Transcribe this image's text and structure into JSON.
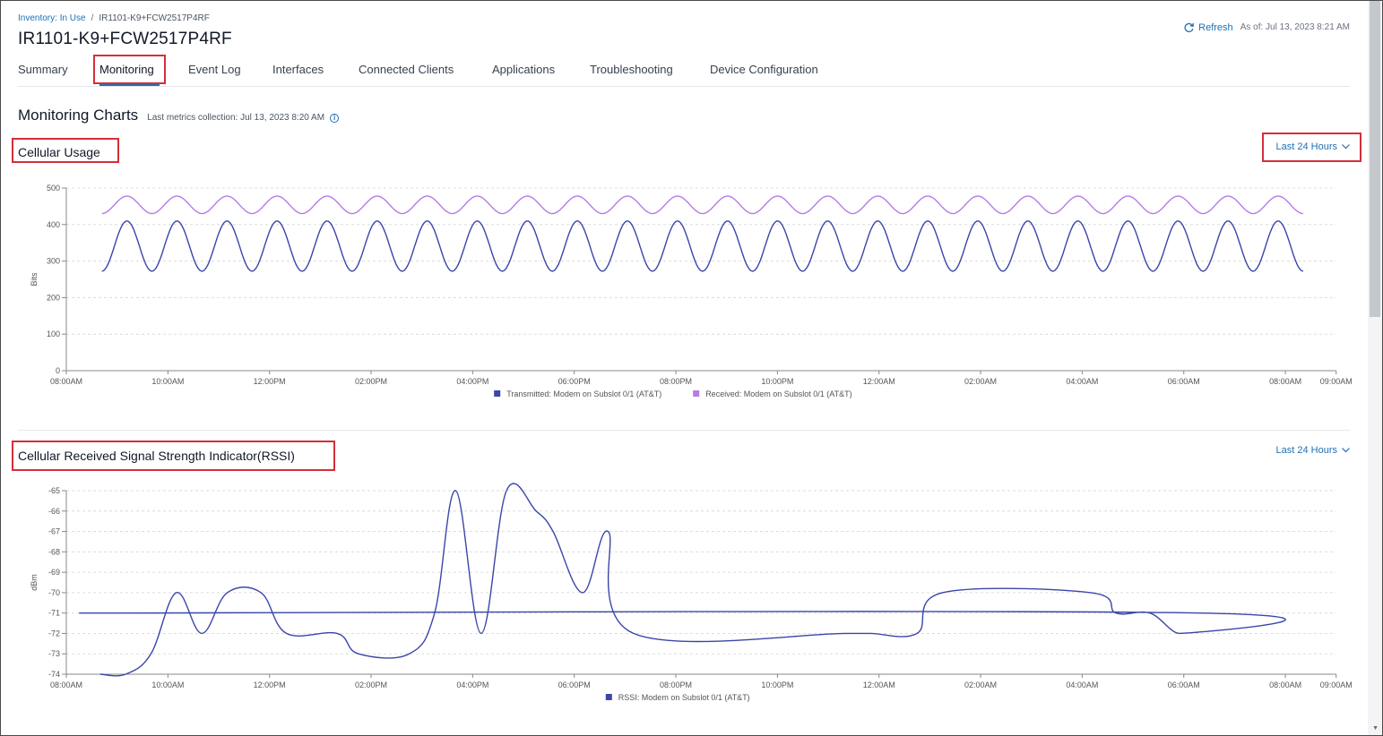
{
  "breadcrumb": {
    "parent": "Inventory: In Use",
    "separator": "/",
    "current": "IR1101-K9+FCW2517P4RF"
  },
  "device_title": "IR1101-K9+FCW2517P4RF",
  "header": {
    "refresh_label": "Refresh",
    "as_of": "As of: Jul 13, 2023 8:21 AM"
  },
  "tabs": [
    {
      "label": "Summary"
    },
    {
      "label": "Monitoring",
      "active": true
    },
    {
      "label": "Event Log"
    },
    {
      "label": "Interfaces"
    },
    {
      "label": "Connected Clients"
    },
    {
      "label": "Applications"
    },
    {
      "label": "Troubleshooting"
    },
    {
      "label": "Device Configuration"
    }
  ],
  "monitoring": {
    "title": "Monitoring Charts",
    "last_collection": "Last metrics collection: Jul 13, 2023 8:20 AM"
  },
  "colors": {
    "accent": "#1f6fb5",
    "transmitted": "#3a46a8",
    "received": "#b57be8",
    "rssi": "#3a46a8",
    "highlight": "#d32f3a"
  },
  "icons": {
    "refresh": "refresh-icon",
    "info": "info-icon",
    "dropdown": "chevron-down-icon"
  },
  "chart_data": [
    {
      "type": "line",
      "title": "Cellular Usage",
      "range_label": "Last 24 Hours",
      "ylabel": "Bits",
      "ylim": [
        0,
        500
      ],
      "yticks": [
        0,
        100,
        200,
        300,
        400,
        500
      ],
      "xticks": [
        "08:00AM",
        "10:00AM",
        "12:00PM",
        "02:00PM",
        "04:00PM",
        "06:00PM",
        "08:00PM",
        "10:00PM",
        "12:00AM",
        "02:00AM",
        "04:00AM",
        "06:00AM",
        "08:00AM",
        "09:00AM"
      ],
      "grid": true,
      "legend_position": "bottom",
      "series": [
        {
          "name": "Transmitted: Modem on Subslot 0/1 (AT&T)",
          "pattern": "oscillating",
          "min": 272,
          "max": 410,
          "cycles": 24
        },
        {
          "name": "Received: Modem on Subslot 0/1 (AT&T)",
          "pattern": "oscillating",
          "min": 430,
          "max": 478,
          "cycles": 24
        }
      ]
    },
    {
      "type": "line",
      "title": "Cellular Received Signal Strength Indicator(RSSI)",
      "range_label": "Last 24 Hours",
      "ylabel": "dBm",
      "ylim": [
        -74,
        -65
      ],
      "yticks": [
        -74,
        -73,
        -72,
        -71,
        -70,
        -69,
        -68,
        -67,
        -66,
        -65
      ],
      "xticks": [
        "08:00AM",
        "10:00AM",
        "12:00PM",
        "02:00PM",
        "04:00PM",
        "06:00PM",
        "08:00PM",
        "10:00PM",
        "12:00AM",
        "02:00AM",
        "04:00AM",
        "06:00AM",
        "08:00AM",
        "09:00AM"
      ],
      "grid": true,
      "legend_position": "bottom",
      "series": [
        {
          "name": "RSSI: Modem on Subslot 0/1 (AT&T)",
          "points": [
            [
              "08:40AM",
              -74
            ],
            [
              "09:10AM",
              -74
            ],
            [
              "09:40AM",
              -73
            ],
            [
              "10:10AM",
              -70
            ],
            [
              "10:40AM",
              -72
            ],
            [
              "11:10AM",
              -70
            ],
            [
              "11:50AM",
              -70
            ],
            [
              "12:20PM",
              -72
            ],
            [
              "01:20PM",
              -72
            ],
            [
              "01:45PM",
              -73
            ],
            [
              "02:45PM",
              -73
            ],
            [
              "03:15PM",
              -71
            ],
            [
              "03:40PM",
              -65
            ],
            [
              "04:10PM",
              -72
            ],
            [
              "04:40PM",
              -65
            ],
            [
              "05:15PM",
              -66
            ],
            [
              "05:35PM",
              -67
            ],
            [
              "06:10PM",
              -70
            ],
            [
              "06:40PM",
              -67
            ],
            [
              "07:10PM",
              -72
            ],
            [
              "11:20PM",
              -72
            ],
            [
              "11:50PM",
              -72
            ],
            [
              "12:45AM",
              -72
            ],
            [
              "01:15AM",
              -70
            ],
            [
              "04:10AM",
              -70
            ],
            [
              "04:40AM",
              -71
            ],
            [
              "05:20AM",
              -71
            ],
            [
              "05:55AM",
              -72
            ],
            [
              "06:20AM",
              -71
            ],
            [
              "08:15AM",
              -71
            ]
          ]
        }
      ]
    }
  ]
}
